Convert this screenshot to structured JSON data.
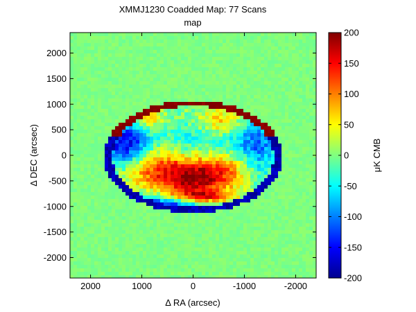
{
  "chart_data": {
    "type": "heatmap",
    "title": "XMMJ1230 Coadded Map: 77 Scans",
    "subtitle": "map",
    "xlabel": "Δ RA (arcsec)",
    "ylabel": "Δ DEC (arcsec)",
    "xlim": [
      2400,
      -2400
    ],
    "ylim": [
      -2400,
      2400
    ],
    "x_ticks": [
      2000,
      1000,
      0,
      -1000,
      -2000
    ],
    "x_tick_labels": [
      "2000",
      "1000",
      "0",
      "-1000",
      "-2000"
    ],
    "y_ticks": [
      2000,
      1500,
      1000,
      500,
      0,
      -500,
      -1000,
      -1500,
      -2000
    ],
    "y_tick_labels": [
      "2000",
      "1500",
      "1000",
      "500",
      "0",
      "-500",
      "-1000",
      "-1500",
      "-2000"
    ],
    "colorbar": {
      "label": "μK CMB",
      "range": [
        -200,
        200
      ],
      "ticks": [
        200,
        150,
        100,
        50,
        0,
        -50,
        -100,
        -150,
        -200
      ],
      "tick_labels": [
        "200",
        "150",
        "100",
        "50",
        "0",
        "-50",
        "-100",
        "-150",
        "-200"
      ],
      "colormap": "jet"
    },
    "background_value": 0,
    "features": [
      {
        "kind": "rim",
        "value": 200,
        "ra": 0,
        "dec": -30,
        "semi_ra": 1750,
        "semi_dec": 1100
      },
      {
        "kind": "blob",
        "value": -180,
        "ra": 700,
        "dec": -1000,
        "sigma_ra": 800,
        "sigma_dec": 160
      },
      {
        "kind": "blob",
        "value": -170,
        "ra": 1300,
        "dec": 200,
        "sigma_ra": 350,
        "sigma_dec": 350
      },
      {
        "kind": "blob",
        "value": -110,
        "ra": -1200,
        "dec": 200,
        "sigma_ra": 350,
        "sigma_dec": 500
      },
      {
        "kind": "blob",
        "value": -50,
        "ra": 0,
        "dec": 300,
        "sigma_ra": 600,
        "sigma_dec": 300
      },
      {
        "kind": "blob",
        "value": 130,
        "ra": 800,
        "dec": -250,
        "sigma_ra": 450,
        "sigma_dec": 320
      },
      {
        "kind": "blob",
        "value": 170,
        "ra": 0,
        "dec": -450,
        "sigma_ra": 380,
        "sigma_dec": 260
      },
      {
        "kind": "blob",
        "value": 110,
        "ra": -700,
        "dec": -300,
        "sigma_ra": 380,
        "sigma_dec": 280
      },
      {
        "kind": "blob",
        "value": 150,
        "ra": -150,
        "dec": -820,
        "sigma_ra": 450,
        "sigma_dec": 90
      },
      {
        "kind": "blob",
        "value": 90,
        "ra": -600,
        "dec": 650,
        "sigma_ra": 350,
        "sigma_dec": 200
      },
      {
        "kind": "blob",
        "value": 80,
        "ra": 900,
        "dec": 700,
        "sigma_ra": 250,
        "sigma_dec": 180
      }
    ]
  },
  "colors": {
    "axis": "#000000",
    "background": "#ffffff"
  }
}
